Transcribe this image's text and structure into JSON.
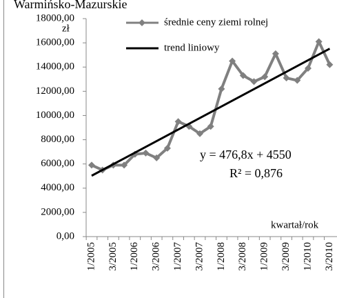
{
  "chart_data": {
    "type": "line",
    "title": "Warmińsko-Mazurskie",
    "y_label": "zł",
    "x_label": "kwartał/rok",
    "categories": [
      "1/2005",
      null,
      "3/2005",
      null,
      "1/2006",
      null,
      "3/2006",
      null,
      "1/2007",
      null,
      "3/2007",
      null,
      "1/2008",
      null,
      "3/2008",
      null,
      "1/2009",
      null,
      "3/2009",
      null,
      "1/2010",
      null,
      "3/2010"
    ],
    "series": [
      {
        "name": "średnie ceny ziemi rolnej",
        "color": "#808080",
        "marker": "diamond",
        "values": [
          5900,
          5500,
          5900,
          5900,
          6800,
          6900,
          6500,
          7300,
          9500,
          9100,
          8500,
          9100,
          12200,
          14500,
          13300,
          12800,
          13200,
          15100,
          13100,
          12900,
          13900,
          16100,
          14200
        ]
      },
      {
        "name": "trend liniowy",
        "color": "#000000",
        "values": [
          5026.8,
          5503.6,
          5980.4,
          6457.2,
          6934,
          7410.8,
          7887.6,
          8364.4,
          8841.2,
          9318,
          9794.8,
          10271.6,
          10748.4,
          11225.2,
          11702,
          12178.8,
          12655.6,
          13132.4,
          13609.2,
          14086,
          14562.8,
          15039.6,
          15516.4
        ]
      }
    ],
    "annotations": [
      "y = 476,8x + 4550",
      "R² = 0,876"
    ],
    "ylim": [
      0,
      18000
    ],
    "yticks": [
      {
        "value": 0,
        "label": "0,00"
      },
      {
        "value": 2000,
        "label": "2000,00"
      },
      {
        "value": 4000,
        "label": "4000,00"
      },
      {
        "value": 6000,
        "label": "6000,00"
      },
      {
        "value": 8000,
        "label": "8000,00"
      },
      {
        "value": 10000,
        "label": "10000,00"
      },
      {
        "value": 12000,
        "label": "12000,00"
      },
      {
        "value": 14000,
        "label": "14000,00"
      },
      {
        "value": 16000,
        "label": "16000,00"
      },
      {
        "value": 18000,
        "label": "18000,00"
      }
    ],
    "grid": false
  }
}
